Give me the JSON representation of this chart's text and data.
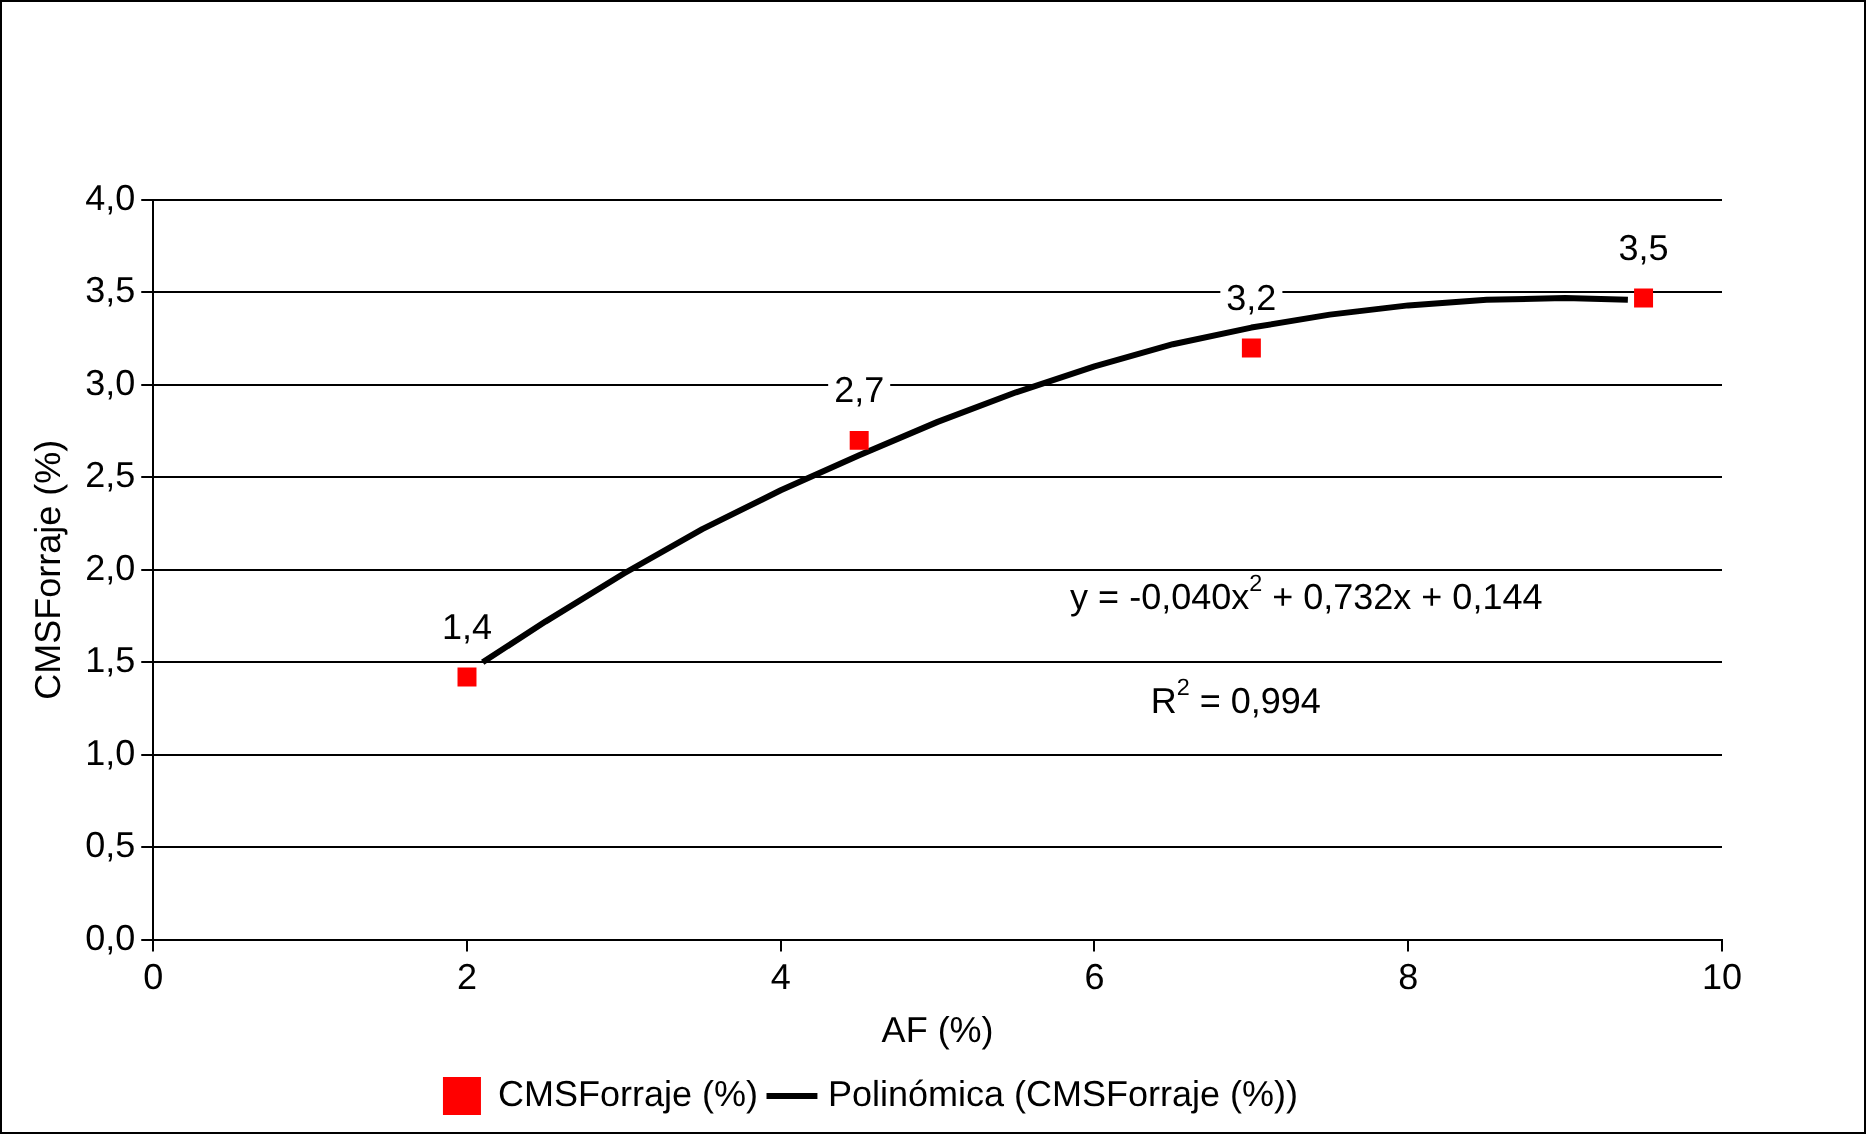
{
  "chart_data": {
    "type": "scatter",
    "xlabel": "AF (%)",
    "ylabel": "CMSForraje (%)",
    "xlim": [
      0,
      10
    ],
    "xticks": [
      0,
      2,
      4,
      6,
      8,
      10
    ],
    "ylim": [
      0,
      4
    ],
    "yticks": [
      {
        "value": 0,
        "label": "0,0"
      },
      {
        "value": 0.5,
        "label": "0,5"
      },
      {
        "value": 1,
        "label": "1,0"
      },
      {
        "value": 1.5,
        "label": "1,5"
      },
      {
        "value": 2,
        "label": "2,0"
      },
      {
        "value": 2.5,
        "label": "2,5"
      },
      {
        "value": 3,
        "label": "3,0"
      },
      {
        "value": 3.5,
        "label": "3,5"
      },
      {
        "value": 4,
        "label": "4,0"
      }
    ],
    "grid": "y",
    "legend": "bottom",
    "series": [
      {
        "name": "CMSForraje (%)",
        "type": "scatter",
        "marker": "square",
        "color": "#ff0000",
        "x": [
          2,
          4.5,
          7,
          9.5
        ],
        "values": [
          1.42,
          2.7,
          3.2,
          3.47
        ],
        "value_labels": [
          "1,4",
          "2,7",
          "3,2",
          "3,5"
        ]
      },
      {
        "name": "Polinómica (CMSForraje (%))",
        "type": "line",
        "marker": "none",
        "color": "#000000",
        "x": [
          2.1,
          2.5,
          3,
          3.5,
          4,
          4.5,
          5,
          5.5,
          6,
          6.5,
          7,
          7.5,
          8,
          8.5,
          9,
          9.4
        ],
        "values": [
          1.5,
          1.72,
          1.98,
          2.22,
          2.43,
          2.62,
          2.8,
          2.96,
          3.1,
          3.22,
          3.31,
          3.38,
          3.43,
          3.46,
          3.47,
          3.46
        ]
      }
    ],
    "annotations": [
      "y = -0,040x$^{2}$ + 0,732x + 0,144",
      "R$^{2}$ = 0,994"
    ]
  }
}
